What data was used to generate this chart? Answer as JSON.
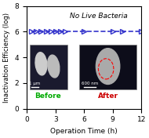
{
  "x_data": [
    0.5,
    1,
    1.5,
    2,
    2.5,
    3,
    3.5,
    4,
    6,
    9,
    10,
    12
  ],
  "y_data": [
    6,
    6,
    6,
    6,
    6,
    6,
    6,
    6,
    6,
    6,
    6,
    6
  ],
  "xlim": [
    0,
    12
  ],
  "ylim": [
    0,
    8
  ],
  "xticks": [
    0,
    3,
    6,
    9,
    12
  ],
  "yticks": [
    0,
    2,
    4,
    6,
    8
  ],
  "xlabel": "Operation Time (h)",
  "ylabel": "Inactivation Efficiency (log)",
  "annotation": "No Live Bacteria",
  "line_color": "#3333cc",
  "marker": ">",
  "marker_size": 5,
  "linestyle": "--",
  "before_label_color": "#00aa00",
  "after_label_color": "#cc0000",
  "before_label": "Before",
  "after_label": "After"
}
